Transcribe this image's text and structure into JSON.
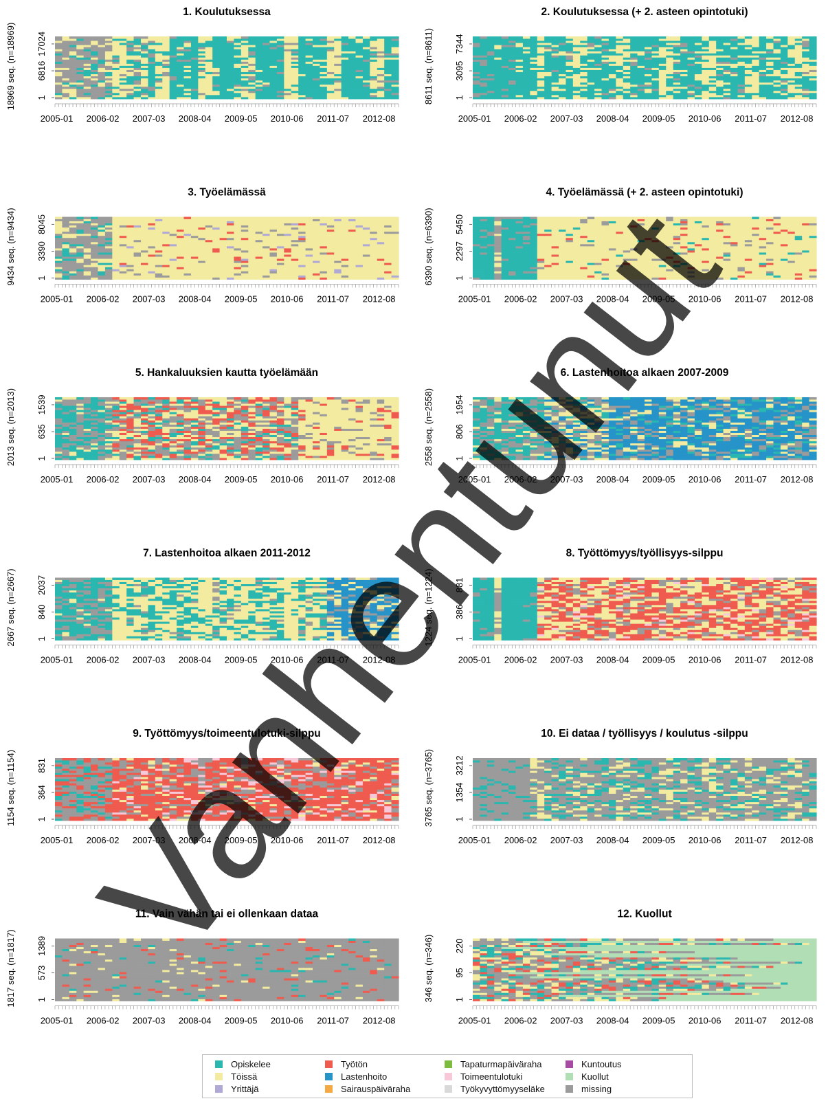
{
  "chart_data": [
    {
      "type": "heatmap",
      "title": "1. Koulutuksessa",
      "ylabel": "18969 seq. (n=18969)",
      "yticks": [
        "1",
        "6816",
        "17024"
      ],
      "xticks": [
        "2005-01",
        "2006-02",
        "2007-03",
        "2008-04",
        "2009-05",
        "2010-06",
        "2011-07",
        "2012-08"
      ],
      "dominant": "Opiskelee"
    },
    {
      "type": "heatmap",
      "title": "2. Koulutuksessa (+ 2. asteen opintotuki)",
      "ylabel": "8611 seq. (n=8611)",
      "yticks": [
        "1",
        "3095",
        "7344"
      ],
      "xticks": [
        "2005-01",
        "2006-02",
        "2007-03",
        "2008-04",
        "2009-05",
        "2010-06",
        "2011-07",
        "2012-08"
      ],
      "dominant": "Opiskelee"
    },
    {
      "type": "heatmap",
      "title": "3. Työelämässä",
      "ylabel": "9434 seq. (n=9434)",
      "yticks": [
        "1",
        "3390",
        "8045"
      ],
      "xticks": [
        "2005-01",
        "2006-02",
        "2007-03",
        "2008-04",
        "2009-05",
        "2010-06",
        "2011-07",
        "2012-08"
      ],
      "dominant": "Töissä"
    },
    {
      "type": "heatmap",
      "title": "4. Työelämässä (+ 2. asteen opintotuki)",
      "ylabel": "6390 seq. (n=6390)",
      "yticks": [
        "1",
        "2297",
        "5450"
      ],
      "xticks": [
        "2005-01",
        "2006-02",
        "2007-03",
        "2008-04",
        "2009-05",
        "2010-06",
        "2011-07",
        "2012-08"
      ],
      "dominant": "Töissä"
    },
    {
      "type": "heatmap",
      "title": "5. Hankaluuksien kautta työelämään",
      "ylabel": "2013 seq. (n=2013)",
      "yticks": [
        "1",
        "635",
        "1539"
      ],
      "xticks": [
        "2005-01",
        "2006-02",
        "2007-03",
        "2008-04",
        "2009-05",
        "2010-06",
        "2011-07",
        "2012-08"
      ],
      "dominant": "Töissä"
    },
    {
      "type": "heatmap",
      "title": "6. Lastenhoitoa alkaen 2007-2009",
      "ylabel": "2558 seq. (n=2558)",
      "yticks": [
        "1",
        "806",
        "1954"
      ],
      "xticks": [
        "2005-01",
        "2006-02",
        "2007-03",
        "2008-04",
        "2009-05",
        "2010-06",
        "2011-07",
        "2012-08"
      ],
      "dominant": "Lastenhoito"
    },
    {
      "type": "heatmap",
      "title": "7. Lastenhoitoa alkaen 2011-2012",
      "ylabel": "2667 seq. (n=2667)",
      "yticks": [
        "1",
        "840",
        "2037"
      ],
      "xticks": [
        "2005-01",
        "2006-02",
        "2007-03",
        "2008-04",
        "2009-05",
        "2010-06",
        "2011-07",
        "2012-08"
      ],
      "dominant": "Töissä"
    },
    {
      "type": "heatmap",
      "title": "8. Työttömyys/työllisyys-silppu",
      "ylabel": "1224 seq. (n=1224)",
      "yticks": [
        "1",
        "386",
        "881"
      ],
      "xticks": [
        "2005-01",
        "2006-02",
        "2007-03",
        "2008-04",
        "2009-05",
        "2010-06",
        "2011-07",
        "2012-08"
      ],
      "dominant": "Työtön"
    },
    {
      "type": "heatmap",
      "title": "9. Työttömyys/toimeentulotuki-silppu",
      "ylabel": "1154 seq. (n=1154)",
      "yticks": [
        "1",
        "364",
        "831"
      ],
      "xticks": [
        "2005-01",
        "2006-02",
        "2007-03",
        "2008-04",
        "2009-05",
        "2010-06",
        "2011-07",
        "2012-08"
      ],
      "dominant": "Työtön"
    },
    {
      "type": "heatmap",
      "title": "10. Ei dataa / työllisyys / koulutus -silppu",
      "ylabel": "3765 seq. (n=3765)",
      "yticks": [
        "1",
        "1354",
        "3212"
      ],
      "xticks": [
        "2005-01",
        "2006-02",
        "2007-03",
        "2008-04",
        "2009-05",
        "2010-06",
        "2011-07",
        "2012-08"
      ],
      "dominant": "missing"
    },
    {
      "type": "heatmap",
      "title": "11. Vain vähän tai ei ollenkaan dataa",
      "ylabel": "1817 seq. (n=1817)",
      "yticks": [
        "1",
        "573",
        "1389"
      ],
      "xticks": [
        "2005-01",
        "2006-02",
        "2007-03",
        "2008-04",
        "2009-05",
        "2010-06",
        "2011-07",
        "2012-08"
      ],
      "dominant": "missing"
    },
    {
      "type": "heatmap",
      "title": "12. Kuollut",
      "ylabel": "346 seq. (n=346)",
      "yticks": [
        "1",
        "95",
        "220"
      ],
      "xticks": [
        "2005-01",
        "2006-02",
        "2007-03",
        "2008-04",
        "2009-05",
        "2010-06",
        "2011-07",
        "2012-08"
      ],
      "dominant": "Kuollut"
    }
  ],
  "legend": [
    {
      "label": "Opiskelee",
      "color": "#2ab7b0"
    },
    {
      "label": "Töissä",
      "color": "#f2eba0"
    },
    {
      "label": "Yrittäjä",
      "color": "#b0a9d6"
    },
    {
      "label": "Työtön",
      "color": "#ef5b4e"
    },
    {
      "label": "Lastenhoito",
      "color": "#2693c9"
    },
    {
      "label": "Sairauspäiväraha",
      "color": "#f5a945"
    },
    {
      "label": "Tapaturmapäiväraha",
      "color": "#7dbb3e"
    },
    {
      "label": "Toimeentulotuki",
      "color": "#f6c8d8"
    },
    {
      "label": "Työkyvyttömyyseläke",
      "color": "#d9d9d9"
    },
    {
      "label": "Kuntoutus",
      "color": "#a64aa3"
    },
    {
      "label": "Kuollut",
      "color": "#b2deb6"
    },
    {
      "label": "missing",
      "color": "#9b9b9b"
    }
  ],
  "watermark": "Vanhentunut"
}
